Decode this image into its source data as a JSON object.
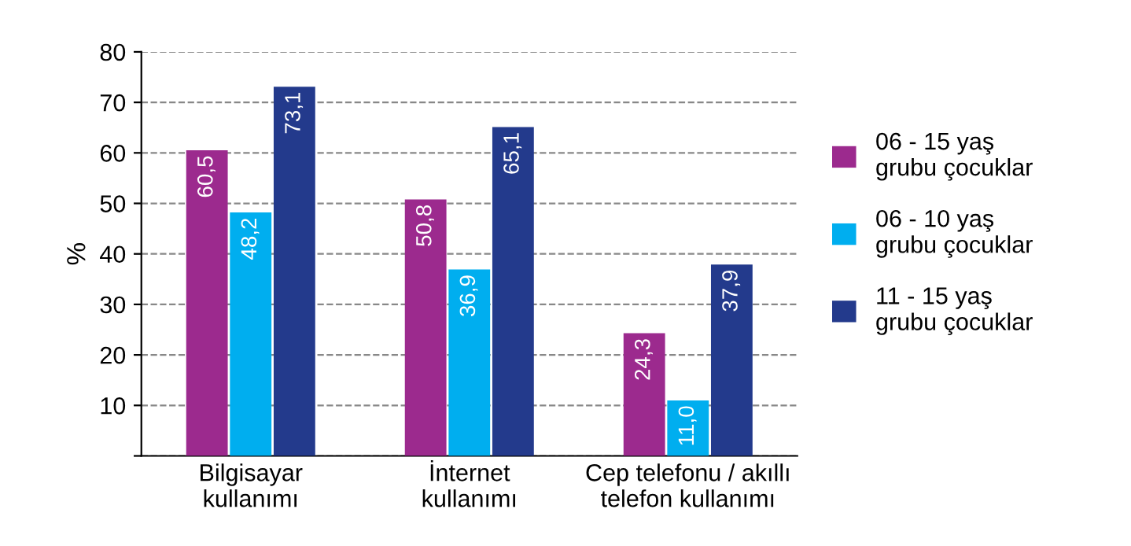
{
  "chart_data": {
    "type": "bar",
    "ylabel": "%",
    "categories": [
      "Bilgisayar\nkullanımı",
      "İnternet\nkullanımı",
      "Cep telefonu / akıllı\ntelefon kullanımı"
    ],
    "series": [
      {
        "name": "06 - 15 yaş\ngrubu çocuklar",
        "color": "#9c2a8e",
        "values": [
          60.5,
          50.8,
          24.3
        ],
        "value_labels": [
          "60,5",
          "50,8",
          "24,3"
        ]
      },
      {
        "name": "06 - 10 yaş\ngrubu çocuklar",
        "color": "#00aeef",
        "values": [
          48.2,
          36.9,
          11.0
        ],
        "value_labels": [
          "48,2",
          "36,9",
          "11,0"
        ]
      },
      {
        "name": "11 - 15 yaş\ngrubu çocuklar",
        "color": "#233a8c",
        "values": [
          73.1,
          65.1,
          37.9
        ],
        "value_labels": [
          "73,1",
          "65,1",
          "37,9"
        ]
      }
    ],
    "ylim": [
      0,
      80
    ],
    "yticks": [
      {
        "value": 0,
        "label": null
      },
      10,
      20,
      30,
      40,
      50,
      60,
      70,
      80
    ],
    "grid": "y",
    "legend": "right"
  }
}
